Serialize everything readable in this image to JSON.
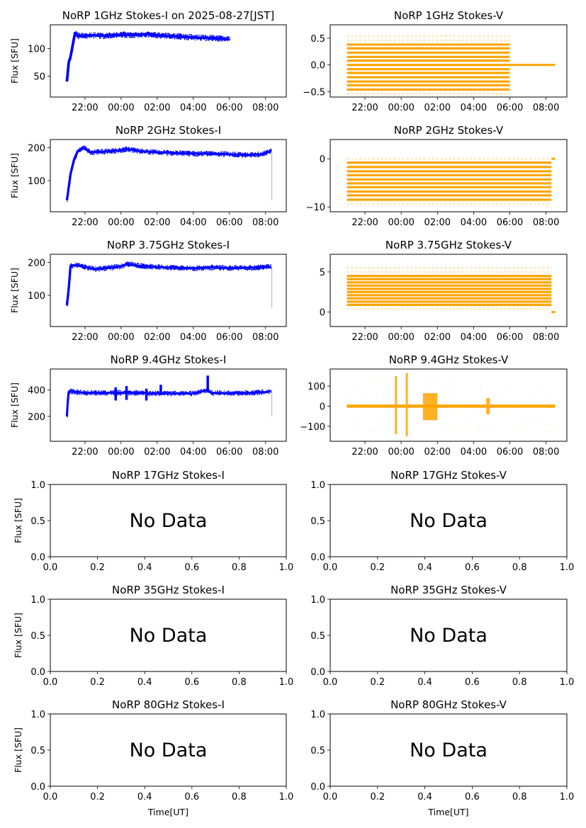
{
  "figure": {
    "x_axis_label": "Time[UT]",
    "y_axis_label": "Flux [SFU]",
    "no_data_label": "No Data"
  },
  "chart_data": [
    {
      "id": "1ghz-i",
      "type": "scatter",
      "title": "NoRP 1GHz Stokes-I on 2025-08-27[JST]",
      "ylabel": "Flux [SFU]",
      "xlabel": "",
      "color": "#0000ff",
      "xlim_hours": [
        20.08,
        33.15
      ],
      "ylim": [
        12,
        143
      ],
      "xticks": [
        "22:00",
        "00:00",
        "02:00",
        "04:00",
        "06:00",
        "08:00"
      ],
      "yticks": [
        50,
        100
      ],
      "series": [
        {
          "name": "Stokes-I",
          "x_hours": [
            21.0,
            21.1,
            21.2,
            21.4,
            21.45,
            21.6,
            22.0,
            22.5,
            23.0,
            24.0,
            25.0,
            25.5,
            26.0,
            27.0,
            28.0,
            29.0,
            29.5,
            30.0
          ],
          "y": [
            40,
            75,
            85,
            120,
            128,
            123,
            123,
            124,
            123,
            125,
            125,
            126,
            124,
            122,
            120,
            119,
            118,
            117
          ],
          "spread": 4
        }
      ]
    },
    {
      "id": "1ghz-v",
      "type": "scatter",
      "title": "NoRP 1GHz Stokes-V",
      "ylabel": "",
      "xlabel": "",
      "color": "#ffa500",
      "xlim_hours": [
        20.08,
        33.15
      ],
      "ylim": [
        -0.6,
        0.75
      ],
      "xticks": [
        "22:00",
        "00:00",
        "02:00",
        "04:00",
        "06:00",
        "08:00"
      ],
      "yticks": [
        -0.5,
        0.0,
        0.5
      ],
      "bands": {
        "x_start": 21.0,
        "x_end": 30.0,
        "levels": [
          -0.46,
          -0.38,
          -0.31,
          -0.23,
          -0.15,
          -0.08,
          0.0,
          0.08,
          0.15,
          0.23,
          0.31,
          0.38
        ],
        "sparse_levels": [
          -0.54,
          0.46,
          0.54
        ],
        "tail": {
          "x_start": 30.0,
          "x_end": 32.5,
          "y": 0.0
        }
      }
    },
    {
      "id": "2ghz-i",
      "type": "scatter",
      "title": "NoRP 2GHz Stokes-I",
      "ylabel": "Flux [SFU]",
      "xlabel": "",
      "color": "#0000ff",
      "xlim_hours": [
        20.08,
        33.15
      ],
      "ylim": [
        5,
        225
      ],
      "xticks": [
        "22:00",
        "00:00",
        "02:00",
        "04:00",
        "06:00",
        "08:00"
      ],
      "yticks": [
        100,
        200
      ],
      "series": [
        {
          "name": "Stokes-I",
          "x_hours": [
            21.0,
            21.2,
            21.4,
            21.6,
            21.9,
            22.3,
            23.0,
            24.0,
            24.3,
            25.0,
            26.0,
            27.0,
            28.0,
            29.0,
            30.0,
            31.0,
            31.8,
            32.3
          ],
          "y": [
            40,
            120,
            165,
            190,
            200,
            186,
            188,
            192,
            196,
            190,
            186,
            184,
            182,
            182,
            180,
            178,
            180,
            190
          ],
          "spread": 6,
          "dropout": {
            "x_hour": 32.35,
            "y_min": 40,
            "y_max": 190
          }
        }
      ]
    },
    {
      "id": "2ghz-v",
      "type": "scatter",
      "title": "NoRP 2GHz Stokes-V",
      "ylabel": "",
      "xlabel": "",
      "color": "#ffa500",
      "xlim_hours": [
        20.08,
        33.15
      ],
      "ylim": [
        -11,
        4
      ],
      "xticks": [
        "22:00",
        "00:00",
        "02:00",
        "04:00",
        "06:00",
        "08:00"
      ],
      "yticks": [
        -10,
        0
      ],
      "bands": {
        "x_start": 21.0,
        "x_end": 32.3,
        "levels": [
          -8.5,
          -7.6,
          -6.8,
          -5.9,
          -5.1,
          -4.3,
          -3.4,
          -2.6,
          -1.7,
          -0.8
        ],
        "sparse_levels": [
          -9.4,
          0.0
        ],
        "tail": {
          "x_start": 32.3,
          "x_end": 32.5,
          "y": 0.0
        }
      }
    },
    {
      "id": "375ghz-i",
      "type": "scatter",
      "title": "NoRP 3.75GHz Stokes-I",
      "ylabel": "Flux [SFU]",
      "xlabel": "",
      "color": "#0000ff",
      "xlim_hours": [
        20.08,
        33.15
      ],
      "ylim": [
        5,
        225
      ],
      "xticks": [
        "22:00",
        "00:00",
        "02:00",
        "04:00",
        "06:00",
        "08:00"
      ],
      "yticks": [
        100,
        200
      ],
      "series": [
        {
          "name": "Stokes-I",
          "x_hours": [
            21.0,
            21.1,
            21.2,
            21.5,
            22.0,
            22.5,
            23.0,
            24.0,
            24.3,
            25.0,
            26.0,
            27.0,
            28.0,
            29.0,
            30.0,
            31.0,
            32.0,
            32.3
          ],
          "y": [
            70,
            120,
            190,
            192,
            186,
            180,
            182,
            188,
            195,
            190,
            186,
            184,
            182,
            185,
            183,
            184,
            186,
            186
          ],
          "spread": 6,
          "dropout": {
            "x_hour": 32.35,
            "y_min": 62,
            "y_max": 186
          }
        }
      ]
    },
    {
      "id": "375ghz-v",
      "type": "scatter",
      "title": "NoRP 3.75GHz Stokes-V",
      "ylabel": "",
      "xlabel": "",
      "color": "#ffa500",
      "xlim_hours": [
        20.08,
        33.15
      ],
      "ylim": [
        -1.8,
        7.2
      ],
      "xticks": [
        "22:00",
        "00:00",
        "02:00",
        "04:00",
        "06:00",
        "08:00"
      ],
      "yticks": [
        0,
        5
      ],
      "bands": {
        "x_start": 21.0,
        "x_end": 32.3,
        "levels": [
          0.9,
          1.3,
          1.7,
          2.1,
          2.5,
          2.9,
          3.3,
          3.7,
          4.1,
          4.5
        ],
        "sparse_levels": [
          0.4,
          5.0,
          5.5
        ],
        "tail": {
          "x_start": 32.3,
          "x_end": 32.5,
          "y": 0.0
        }
      }
    },
    {
      "id": "94ghz-i",
      "type": "scatter",
      "title": "NoRP 9.4GHz Stokes-I",
      "ylabel": "Flux [SFU]",
      "xlabel": "",
      "color": "#0000ff",
      "xlim_hours": [
        20.08,
        33.15
      ],
      "ylim": [
        10,
        560
      ],
      "xticks": [
        "22:00",
        "00:00",
        "02:00",
        "04:00",
        "06:00",
        "08:00"
      ],
      "yticks": [
        200,
        400
      ],
      "series": [
        {
          "name": "Stokes-I",
          "x_hours": [
            21.0,
            21.05,
            21.1,
            21.5,
            22.0,
            23.0,
            23.7,
            24.3,
            25.0,
            25.4,
            25.6,
            26.0,
            27.0,
            28.0,
            28.8,
            29.0,
            30.0,
            31.0,
            32.0,
            32.3
          ],
          "y": [
            200,
            320,
            390,
            385,
            380,
            378,
            380,
            378,
            380,
            378,
            372,
            375,
            374,
            374,
            400,
            378,
            376,
            378,
            384,
            392
          ],
          "spread": 14,
          "bursts": [
            {
              "x_hour": 23.7,
              "y_min": 320,
              "y_max": 420
            },
            {
              "x_hour": 24.3,
              "y_min": 325,
              "y_max": 430
            },
            {
              "x_hour": 25.4,
              "y_min": 320,
              "y_max": 410
            },
            {
              "x_hour": 26.2,
              "y_min": 360,
              "y_max": 440
            },
            {
              "x_hour": 28.8,
              "y_min": 380,
              "y_max": 510
            }
          ],
          "dropout": {
            "x_hour": 32.35,
            "y_min": 200,
            "y_max": 392
          }
        }
      ]
    },
    {
      "id": "94ghz-v",
      "type": "scatter",
      "title": "NoRP 9.4GHz Stokes-V",
      "ylabel": "",
      "xlabel": "",
      "color": "#ffa500",
      "xlim_hours": [
        20.08,
        33.15
      ],
      "ylim": [
        -175,
        185
      ],
      "xticks": [
        "22:00",
        "00:00",
        "02:00",
        "04:00",
        "06:00",
        "08:00"
      ],
      "yticks": [
        -100,
        0,
        100
      ],
      "core": {
        "x_start": 21.0,
        "x_end": 32.5,
        "y_min": -8,
        "y_max": 8
      },
      "bursts": [
        {
          "x_start": 23.65,
          "x_end": 23.75,
          "y_min": -140,
          "y_max": 150
        },
        {
          "x_start": 24.25,
          "x_end": 24.35,
          "y_min": -150,
          "y_max": 165
        },
        {
          "x_start": 25.2,
          "x_end": 26.0,
          "y_min": -70,
          "y_max": 65
        },
        {
          "x_start": 28.7,
          "x_end": 28.9,
          "y_min": -40,
          "y_max": 40
        }
      ]
    },
    {
      "id": "17ghz-i",
      "type": "empty",
      "title": "NoRP 17GHz Stokes-I",
      "ylabel": "Flux [SFU]",
      "xlabel": "",
      "xlim": [
        0,
        1
      ],
      "ylim": [
        0,
        1
      ],
      "xticks": [
        "0.0",
        "0.2",
        "0.4",
        "0.6",
        "0.8",
        "1.0"
      ],
      "yticks": [
        "0.0",
        "0.5",
        "1.0"
      ],
      "message": "No Data"
    },
    {
      "id": "17ghz-v",
      "type": "empty",
      "title": "NoRP 17GHz Stokes-V",
      "ylabel": "",
      "xlabel": "",
      "xlim": [
        0,
        1
      ],
      "ylim": [
        0,
        1
      ],
      "xticks": [
        "0.0",
        "0.2",
        "0.4",
        "0.6",
        "0.8",
        "1.0"
      ],
      "yticks": [
        "0.0",
        "0.5",
        "1.0"
      ],
      "message": "No Data"
    },
    {
      "id": "35ghz-i",
      "type": "empty",
      "title": "NoRP 35GHz Stokes-I",
      "ylabel": "Flux [SFU]",
      "xlabel": "",
      "xlim": [
        0,
        1
      ],
      "ylim": [
        0,
        1
      ],
      "xticks": [
        "0.0",
        "0.2",
        "0.4",
        "0.6",
        "0.8",
        "1.0"
      ],
      "yticks": [
        "0.0",
        "0.5",
        "1.0"
      ],
      "message": "No Data"
    },
    {
      "id": "35ghz-v",
      "type": "empty",
      "title": "NoRP 35GHz Stokes-V",
      "ylabel": "",
      "xlabel": "",
      "xlim": [
        0,
        1
      ],
      "ylim": [
        0,
        1
      ],
      "xticks": [
        "0.0",
        "0.2",
        "0.4",
        "0.6",
        "0.8",
        "1.0"
      ],
      "yticks": [
        "0.0",
        "0.5",
        "1.0"
      ],
      "message": "No Data"
    },
    {
      "id": "80ghz-i",
      "type": "empty",
      "title": "NoRP 80GHz Stokes-I",
      "ylabel": "Flux [SFU]",
      "xlabel": "Time[UT]",
      "xlim": [
        0,
        1
      ],
      "ylim": [
        0,
        1
      ],
      "xticks": [
        "0.0",
        "0.2",
        "0.4",
        "0.6",
        "0.8",
        "1.0"
      ],
      "yticks": [
        "0.0",
        "0.5",
        "1.0"
      ],
      "message": "No Data"
    },
    {
      "id": "80ghz-v",
      "type": "empty",
      "title": "NoRP 80GHz Stokes-V",
      "ylabel": "",
      "xlabel": "Time[UT]",
      "xlim": [
        0,
        1
      ],
      "ylim": [
        0,
        1
      ],
      "xticks": [
        "0.0",
        "0.2",
        "0.4",
        "0.6",
        "0.8",
        "1.0"
      ],
      "yticks": [
        "0.0",
        "0.5",
        "1.0"
      ],
      "message": "No Data"
    }
  ]
}
